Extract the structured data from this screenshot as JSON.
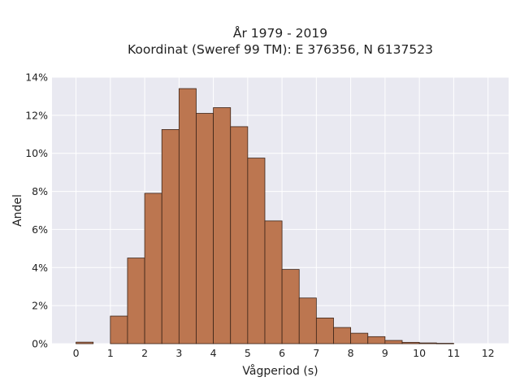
{
  "chart_data": {
    "type": "bar",
    "title": [
      "År 1979 - 2019",
      "Koordinat (Sweref 99 TM): E 376356, N 6137523"
    ],
    "xlabel": "Vågperiod (s)",
    "ylabel": "Andel",
    "xlim": [
      -0.7,
      12.6
    ],
    "ylim": [
      0,
      14
    ],
    "x_ticks": [
      0,
      1,
      2,
      3,
      4,
      5,
      6,
      7,
      8,
      9,
      10,
      11,
      12
    ],
    "y_ticks": [
      0,
      2,
      4,
      6,
      8,
      10,
      12,
      14
    ],
    "y_tick_labels": [
      "0%",
      "2%",
      "4%",
      "6%",
      "8%",
      "10%",
      "12%",
      "14%"
    ],
    "bin_width": 0.5,
    "bars": [
      {
        "x0": 0.0,
        "value": 0.08
      },
      {
        "x0": 1.0,
        "value": 1.45
      },
      {
        "x0": 1.5,
        "value": 4.5
      },
      {
        "x0": 2.0,
        "value": 7.9
      },
      {
        "x0": 2.5,
        "value": 11.25
      },
      {
        "x0": 3.0,
        "value": 13.4
      },
      {
        "x0": 3.5,
        "value": 12.1
      },
      {
        "x0": 4.0,
        "value": 12.4
      },
      {
        "x0": 4.5,
        "value": 11.4
      },
      {
        "x0": 5.0,
        "value": 9.75
      },
      {
        "x0": 5.5,
        "value": 6.45
      },
      {
        "x0": 6.0,
        "value": 3.9
      },
      {
        "x0": 6.5,
        "value": 2.4
      },
      {
        "x0": 7.0,
        "value": 1.35
      },
      {
        "x0": 7.5,
        "value": 0.85
      },
      {
        "x0": 8.0,
        "value": 0.55
      },
      {
        "x0": 8.5,
        "value": 0.37
      },
      {
        "x0": 9.0,
        "value": 0.17
      },
      {
        "x0": 9.5,
        "value": 0.07
      },
      {
        "x0": 10.0,
        "value": 0.04
      },
      {
        "x0": 10.5,
        "value": 0.02
      }
    ],
    "grid": true,
    "colors": {
      "bar_fill": "#bc7650",
      "bar_edge": "#3b2418",
      "plot_background": "#e9e9f1",
      "grid": "#ffffff"
    }
  }
}
